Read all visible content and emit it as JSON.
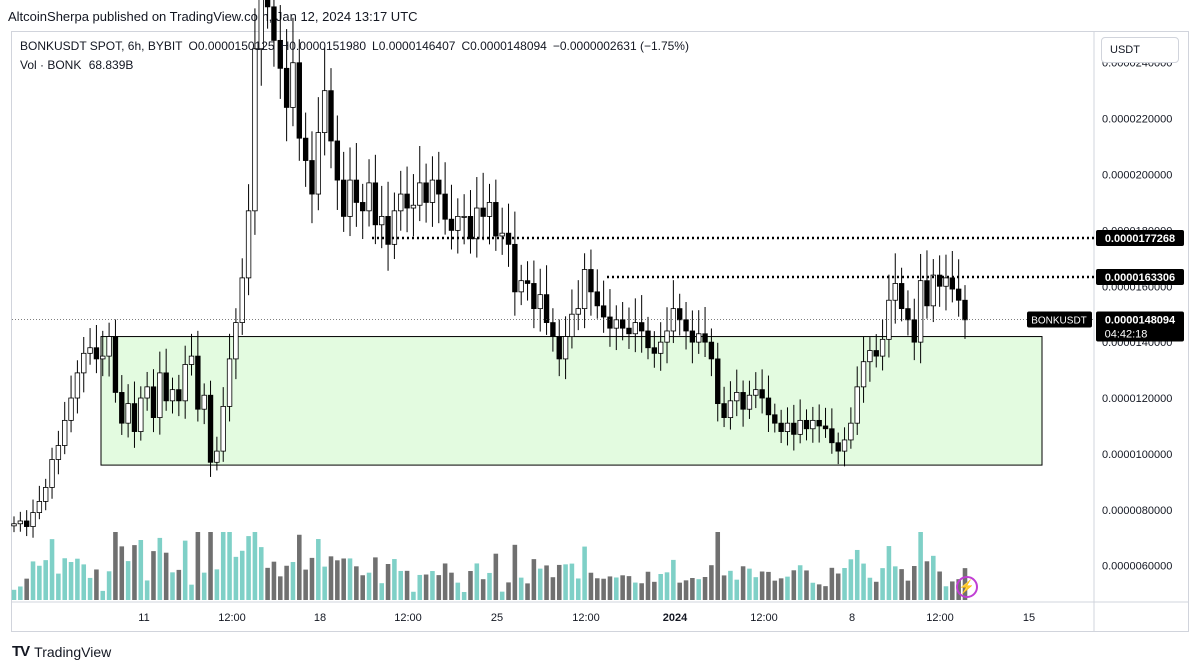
{
  "header": {
    "publisher_line": "AltcoinSherpa published on TradingView.com, Jan 12, 2024 13:17 UTC"
  },
  "legend": {
    "symbol": "BONKUSDT SPOT, 6h, BYBIT",
    "open": "O0.0000150125",
    "high": "H0.0000151980",
    "low": "L0.0000146407",
    "close": "C0.0000148094",
    "change": "−0.0000002631 (−1.75%)",
    "vol_label": "Vol · BONK",
    "vol_value": "68.839B"
  },
  "currency_button": "USDT",
  "footer": {
    "brand": "TradingView"
  },
  "colors": {
    "up": "#ffffff",
    "down": "#000000",
    "wick": "#000000",
    "vol_up": "#7fd0c7",
    "vol_down": "#707070",
    "zone_fill": "#e3fbe0",
    "zone_border": "#000000",
    "accent_icon": "#c03fd4"
  },
  "icons": {
    "footer_logo": "tradingview-logo-icon",
    "alert": "lightning-bolt-icon"
  },
  "chart_data": {
    "type": "candlestick",
    "title": "BONKUSDT SPOT, 6h, BYBIT",
    "ylabel": "USDT",
    "ylim": [
      4.7e-06,
      2.51e-05
    ],
    "y_ticks": [
      "0.0000060000",
      "0.0000080000",
      "0.0000100000",
      "0.0000120000",
      "0.0000140000",
      "0.0000160000",
      "0.0000180000",
      "0.0000200000",
      "0.0000220000",
      "0.0000240000"
    ],
    "y_tick_values": [
      6e-06,
      8e-06,
      1e-05,
      1.2e-05,
      1.4e-05,
      1.6e-05,
      1.8e-05,
      2e-05,
      2.2e-05,
      2.4e-05
    ],
    "x_ticks": [
      "11",
      "12:00",
      "18",
      "12:00",
      "25",
      "12:00",
      "2024",
      "12:00",
      "8",
      "12:00",
      "15"
    ],
    "candles_6h_close": [
      7.5e-06,
      7.6e-06,
      7.4e-06,
      7.9e-06,
      8.3e-06,
      8.8e-06,
      9.8e-06,
      1.03e-05,
      1.12e-05,
      1.2e-05,
      1.29e-05,
      1.36e-05,
      1.38e-05,
      1.34e-05,
      1.35e-05,
      1.42e-05,
      1.22e-05,
      1.11e-05,
      1.18e-05,
      1.08e-05,
      1.2e-05,
      1.24e-05,
      1.13e-05,
      1.29e-05,
      1.19e-05,
      1.23e-05,
      1.19e-05,
      1.32e-05,
      1.35e-05,
      1.16e-05,
      1.21e-05,
      9.7e-06,
      1.01e-05,
      1.17e-05,
      1.34e-05,
      1.47e-05,
      1.63e-05,
      1.87e-05,
      2.45e-05,
      2.7e-05,
      2.6e-05,
      2.48e-05,
      2.38e-05,
      2.24e-05,
      2.4e-05,
      2.13e-05,
      2.05e-05,
      1.93e-05,
      2.15e-05,
      2.3e-05,
      2.12e-05,
      1.98e-05,
      1.85e-05,
      1.98e-05,
      1.9e-05,
      1.87e-05,
      1.97e-05,
      1.82e-05,
      1.85e-05,
      1.75e-05,
      1.87e-05,
      1.93e-05,
      1.88e-05,
      1.89e-05,
      1.97e-05,
      1.9e-05,
      1.98e-05,
      1.93e-05,
      1.84e-05,
      1.8e-05,
      1.85e-05,
      1.85e-05,
      1.77e-05,
      1.88e-05,
      1.85e-05,
      1.9e-05,
      1.78e-05,
      1.79e-05,
      1.75e-05,
      1.58e-05,
      1.62e-05,
      1.61e-05,
      1.52e-05,
      1.57e-05,
      1.47e-05,
      1.42e-05,
      1.34e-05,
      1.42e-05,
      1.5e-05,
      1.52e-05,
      1.66e-05,
      1.58e-05,
      1.53e-05,
      1.49e-05,
      1.45e-05,
      1.48e-05,
      1.45e-05,
      1.43e-05,
      1.47e-05,
      1.44e-05,
      1.38e-05,
      1.36e-05,
      1.4e-05,
      1.44e-05,
      1.52e-05,
      1.48e-05,
      1.44e-05,
      1.4e-05,
      1.43e-05,
      1.4e-05,
      1.34e-05,
      1.18e-05,
      1.13e-05,
      1.19e-05,
      1.22e-05,
      1.16e-05,
      1.21e-05,
      1.23e-05,
      1.2e-05,
      1.14e-05,
      1.11e-05,
      1.08e-05,
      1.11e-05,
      1.07e-05,
      1.12e-05,
      1.09e-05,
      1.12e-05,
      1.1e-05,
      1.09e-05,
      1.04e-05,
      1.01e-05,
      1.05e-05,
      1.11e-05,
      1.24e-05,
      1.33e-05,
      1.37e-05,
      1.35e-05,
      1.41e-05,
      1.55e-05,
      1.61e-05,
      1.52e-05,
      1.48e-05,
      1.4e-05,
      1.62e-05,
      1.53e-05,
      1.64e-05,
      1.6e-05,
      1.63e-05,
      1.59e-05,
      1.55e-05,
      1.48e-05
    ],
    "annotations": [
      {
        "type": "horizontal_dotted_line",
        "value": 1.77268e-05,
        "label": "0.0000177268"
      },
      {
        "type": "horizontal_dotted_line",
        "value": 1.63306e-05,
        "label": "0.0000163306"
      },
      {
        "type": "rectangle_zone",
        "from": 9.6e-06,
        "to": 1.42e-05,
        "label": ""
      },
      {
        "type": "last_price",
        "symbol": "BONKUSDT",
        "value": 1.48094e-05,
        "label": "0.0000148094",
        "countdown": "04:42:18"
      }
    ]
  }
}
